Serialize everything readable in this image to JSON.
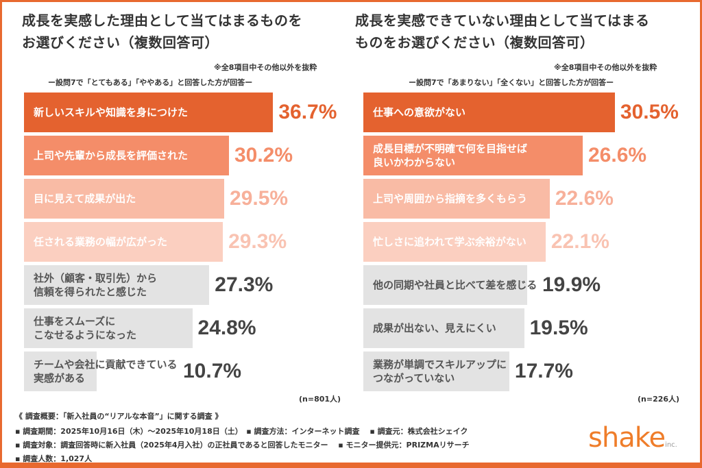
{
  "left": {
    "title_line1": "成長を実感した理由として当てはまるものを",
    "title_line2": "お選びください（複数回答可）",
    "note": "※全8項目中その他以外を抜粋",
    "subtitle": "ー設問7で「とてもある」「ややある」と回答した方が回答ー",
    "n": "(n=801人)"
  },
  "right": {
    "title_line1": "成長を実感できていない理由として当てはまる",
    "title_line2": "ものをお選びください（複数回答可）",
    "note": "※全8項目中その他以外を抜粋",
    "subtitle": "ー設問7で「あまりない」「全くない」と回答した方が回答ー",
    "n": "(n=226人)"
  },
  "chart_data": [
    {
      "type": "bar",
      "orientation": "horizontal",
      "unit": "%",
      "categories": [
        "新しいスキルや知識を身につけた",
        "上司や先輩から成長を評価された",
        "目に見えて成果が出た",
        "任される業務の幅が広がった",
        "社外（顧客・取引先）から\n信頼を得られたと感じた",
        "仕事をスムーズに\nこなせるようになった",
        "チームや会社に貢献できている\n実感がある"
      ],
      "values": [
        36.7,
        30.2,
        29.5,
        29.3,
        27.3,
        24.8,
        10.7
      ],
      "labels": [
        "36.7%",
        "30.2%",
        "29.5%",
        "29.3%",
        "27.3%",
        "24.8%",
        "10.7%"
      ],
      "colors": [
        "#e4622f",
        "#f48d69",
        "#f9bba5",
        "#fbcfc0",
        "#e3e3e3",
        "#e3e3e3",
        "#e3e3e3"
      ]
    },
    {
      "type": "bar",
      "orientation": "horizontal",
      "unit": "%",
      "categories": [
        "仕事への意欲がない",
        "成長目標が不明確で何を目指せば\n良いかわからない",
        "上司や周囲から指摘を多くもらう",
        "忙しさに追われて学ぶ余裕がない",
        "他の同期や社員と比べて差を感じる",
        "成果が出ない、見えにくい",
        "業務が単調でスキルアップに\nつながっていない"
      ],
      "values": [
        30.5,
        26.6,
        22.6,
        22.1,
        19.9,
        19.5,
        17.7
      ],
      "labels": [
        "30.5%",
        "26.6%",
        "22.6%",
        "22.1%",
        "19.9%",
        "19.5%",
        "17.7%"
      ],
      "colors": [
        "#e4622f",
        "#f48d69",
        "#f9bba5",
        "#fbcfc0",
        "#e3e3e3",
        "#e3e3e3",
        "#e3e3e3"
      ]
    }
  ],
  "footer": {
    "line1": "《 調査概要：「新入社員の“リアルな本音”」に関する調査 》",
    "line2": "▪ 調査期間：2025年10月16日（木）～2025年10月18日（土）　▪ 調査方法：インターネット調査　 ▪ 調査元：株式会社シェイク",
    "line3": "▪ 調査対象：調査回答時に新入社員（2025年4月入社）の正社員であると回答したモニター　 ▪ モニター提供元：PRIZMAリサーチ",
    "line4": "▪ 調査人数：1,027人"
  },
  "logo": {
    "text": "shake",
    "suffix": "inc."
  }
}
